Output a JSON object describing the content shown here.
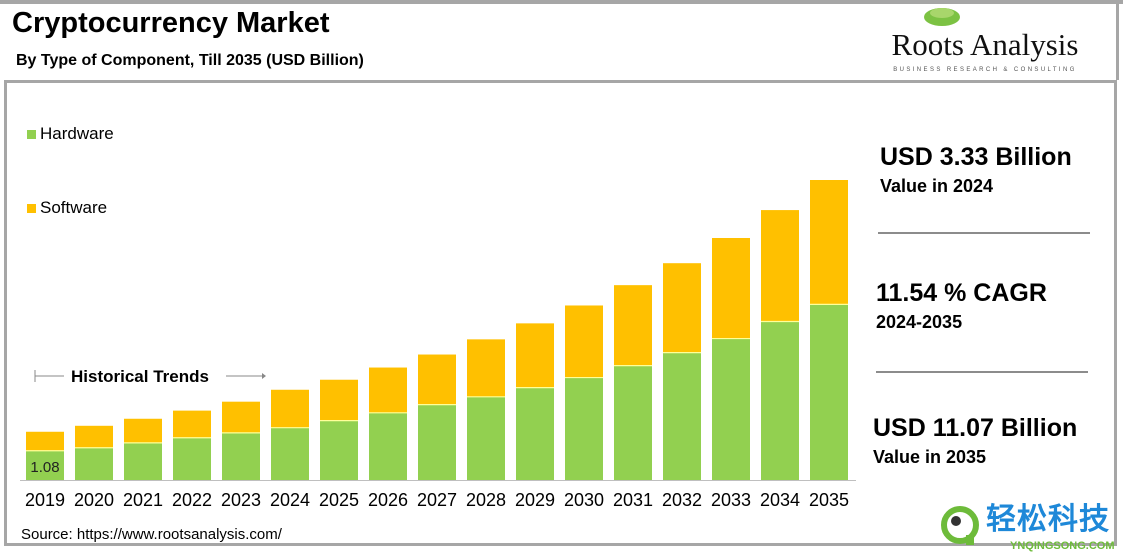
{
  "header": {
    "title": "Cryptocurrency Market",
    "subtitle": "By Type of Component, Till 2035 (USD Billion)"
  },
  "logo": {
    "name": "Roots Analysis",
    "tagline": "BUSINESS RESEARCH & CONSULTING"
  },
  "stats": [
    {
      "value": "USD 3.33 Billion",
      "label": "Value in 2024"
    },
    {
      "value": "11.54 % CAGR",
      "label": "2024-2035"
    },
    {
      "value": "USD 11.07 Billion",
      "label": "Value in 2035"
    }
  ],
  "annotation": "Historical Trends",
  "source": "Source: https://www.rootsanalysis.com/",
  "watermark": {
    "text": "轻松科技",
    "url": "YNQINGSONG.COM"
  },
  "chart_data": {
    "type": "bar",
    "stacked": true,
    "categories": [
      "2019",
      "2020",
      "2021",
      "2022",
      "2023",
      "2024",
      "2025",
      "2026",
      "2027",
      "2028",
      "2029",
      "2030",
      "2031",
      "2032",
      "2033",
      "2034",
      "2035"
    ],
    "series": [
      {
        "name": "Hardware",
        "color": "#92d050",
        "values": [
          1.08,
          1.19,
          1.37,
          1.56,
          1.74,
          1.93,
          2.19,
          2.48,
          2.78,
          3.07,
          3.41,
          3.78,
          4.22,
          4.7,
          5.22,
          5.85,
          6.48
        ]
      },
      {
        "name": "Software",
        "color": "#ffc000",
        "values": [
          0.7,
          0.81,
          0.89,
          1.0,
          1.15,
          1.4,
          1.51,
          1.67,
          1.85,
          2.12,
          2.37,
          2.66,
          2.97,
          3.3,
          3.71,
          4.11,
          4.59
        ]
      }
    ],
    "data_labels": [
      {
        "category": "2019",
        "series": "Hardware",
        "text": "1.08"
      }
    ],
    "legend": "top-left",
    "grid": false,
    "ylim": [
      0,
      12
    ]
  }
}
